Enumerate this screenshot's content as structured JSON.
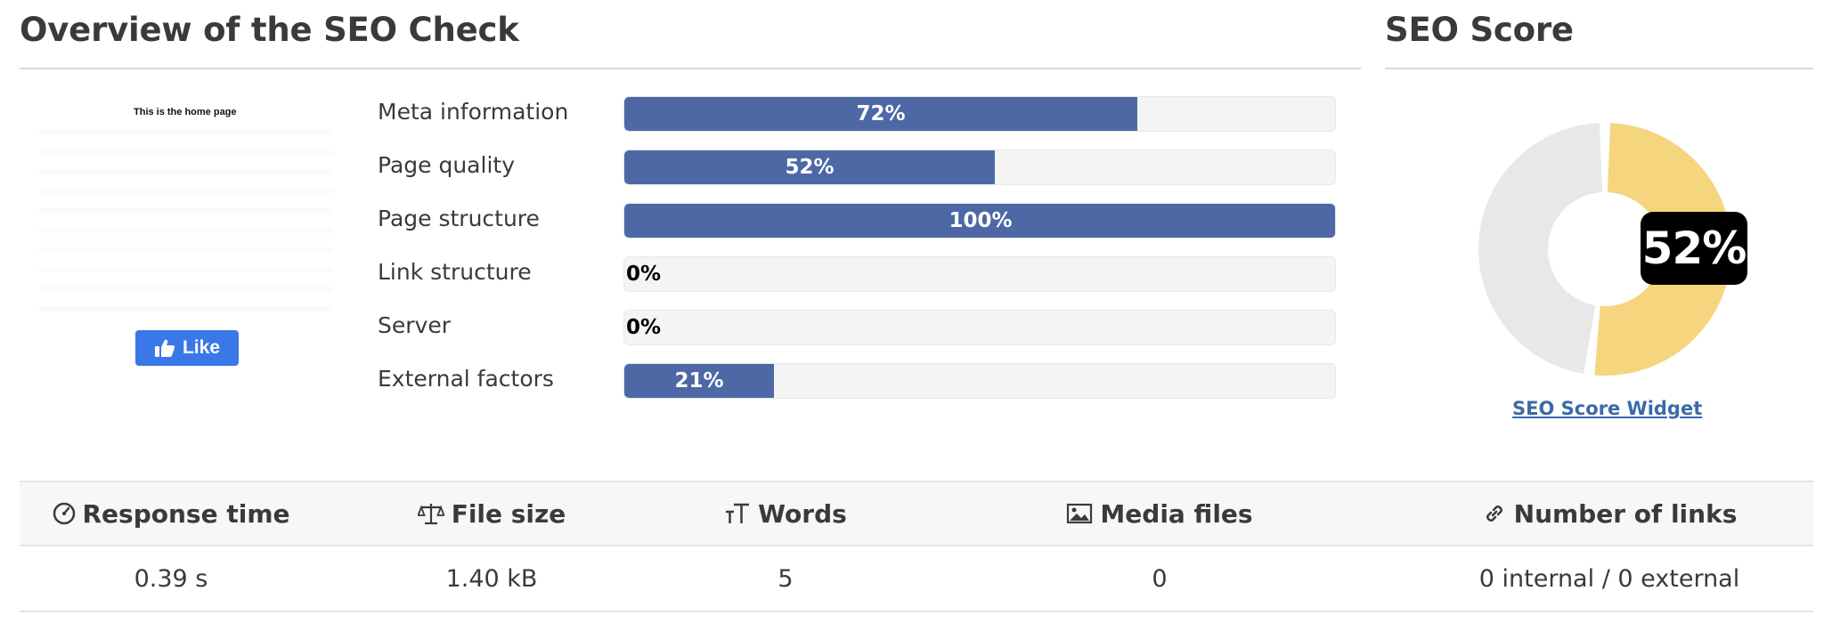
{
  "overview": {
    "title": "Overview of the SEO Check",
    "thumbnail_text": "This is the home page",
    "like_label": "Like",
    "like_icon": "thumbs-up-icon"
  },
  "bars": [
    {
      "label": "Meta information",
      "value_text": "72%",
      "percent": 72
    },
    {
      "label": "Page quality",
      "value_text": "52%",
      "percent": 52
    },
    {
      "label": "Page structure",
      "value_text": "100%",
      "percent": 100
    },
    {
      "label": "Link structure",
      "value_text": "0%",
      "percent": 0
    },
    {
      "label": "Server",
      "value_text": "0%",
      "percent": 0
    },
    {
      "label": "External factors",
      "value_text": "21%",
      "percent": 21
    }
  ],
  "score": {
    "title": "SEO Score",
    "value_text": "52%",
    "percent": 52,
    "widget_link": "SEO Score Widget"
  },
  "stats": {
    "headers": [
      {
        "label": "Response time",
        "icon": "gauge-icon"
      },
      {
        "label": "File size",
        "icon": "scale-icon"
      },
      {
        "label": "Words",
        "icon": "text-size-icon"
      },
      {
        "label": "Media files",
        "icon": "image-icon"
      },
      {
        "label": "Number of links",
        "icon": "link-icon"
      }
    ],
    "values": [
      "0.39 s",
      "1.40 kB",
      "5",
      "0",
      "0 internal / 0 external"
    ]
  },
  "colors": {
    "bar_fill": "#4d68a5",
    "bar_track": "#f4f4f4",
    "donut_score": "#f5d57e",
    "donut_rest": "#e8e8e8",
    "link": "#3b6aa8",
    "like_button": "#3b78e7"
  }
}
